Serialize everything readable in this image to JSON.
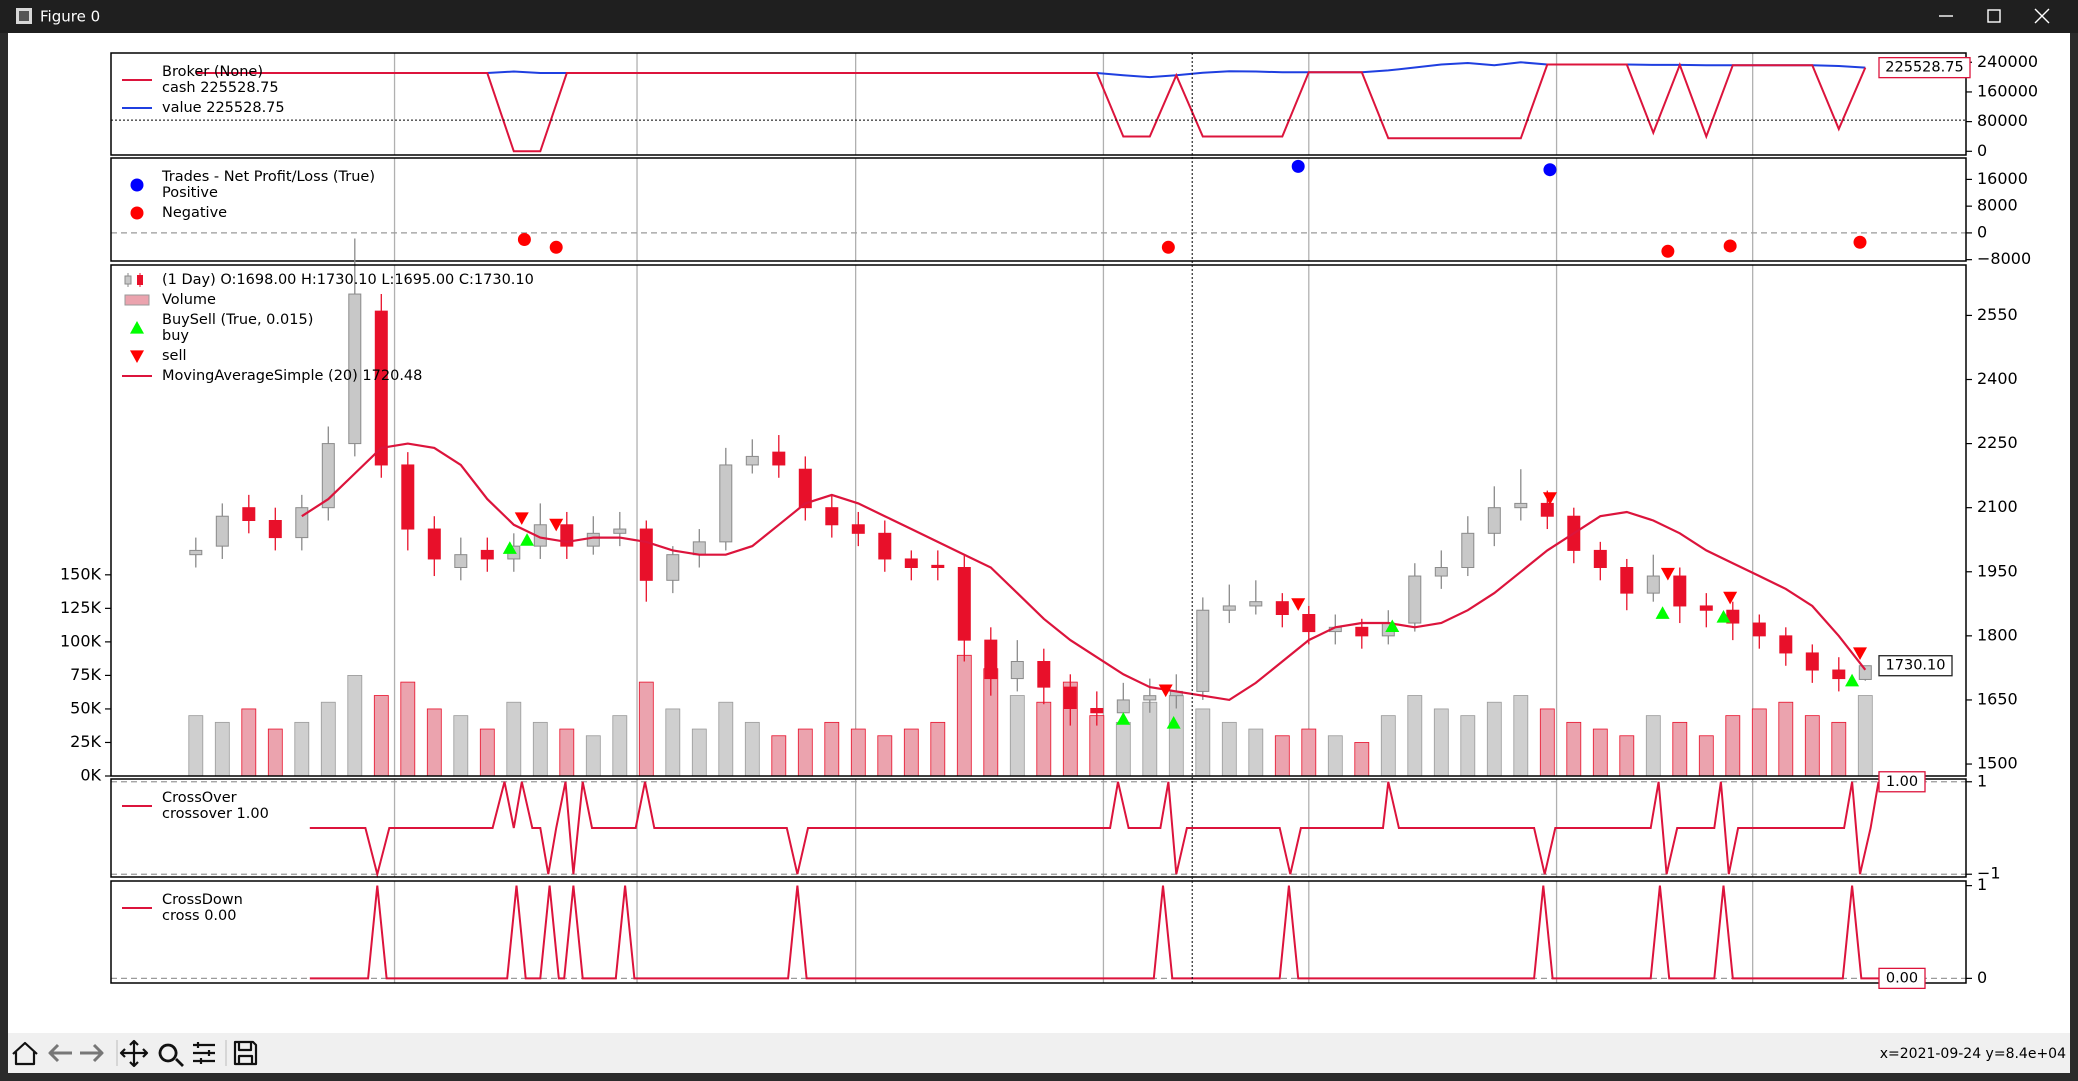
{
  "window": {
    "title": "Figure 0"
  },
  "status": "x=2021-09-24 y=8.4e+04",
  "chart_data": [
    {
      "type": "line",
      "legend_title": "Broker (None)",
      "last_label": "225528.75",
      "xlim": [
        -3.2,
        66.8
      ],
      "xticks": [
        7.5,
        16.65,
        24.9,
        34.25,
        42,
        51.35,
        58.75
      ],
      "grid": true,
      "ylim": [
        -10000,
        265000
      ],
      "yticks": [
        0,
        80000,
        160000,
        240000
      ],
      "crosshair": {
        "x": 37.6,
        "y": 84000
      },
      "series": [
        {
          "name": "cash 225528.75",
          "color": "#dc143c",
          "values": [
            211000,
            211000,
            211000,
            211000,
            211000,
            211000,
            211000,
            211000,
            211000,
            211000,
            211000,
            211000,
            0,
            0,
            211000,
            211000,
            211000,
            211000,
            211000,
            211000,
            211000,
            211000,
            211000,
            211000,
            211000,
            211000,
            211000,
            211000,
            211000,
            211000,
            211000,
            211000,
            211000,
            211000,
            211000,
            40000,
            40000,
            205000,
            40000,
            40000,
            40000,
            40000,
            213000,
            213000,
            213000,
            35000,
            35000,
            35000,
            35000,
            35000,
            35000,
            234000,
            234000,
            234000,
            234000,
            50000,
            233000,
            40000,
            232000,
            232000,
            232000,
            232000,
            60000,
            225528.75
          ]
        },
        {
          "name": "value 225528.75",
          "color": "#1f3fe0",
          "values": [
            211000,
            211000,
            211000,
            211000,
            211000,
            211000,
            211000,
            211000,
            211000,
            211000,
            211000,
            211000,
            215000,
            211000,
            211000,
            211000,
            211000,
            211000,
            211000,
            211000,
            211000,
            211000,
            211000,
            211000,
            211000,
            211000,
            211000,
            211000,
            211000,
            211000,
            211000,
            211000,
            211000,
            211000,
            211000,
            205000,
            200000,
            205000,
            212000,
            216000,
            215000,
            213000,
            213000,
            213000,
            213000,
            218000,
            226000,
            234000,
            238000,
            232000,
            240000,
            234000,
            234000,
            234000,
            234000,
            233000,
            233000,
            232000,
            232000,
            232000,
            232000,
            232000,
            230000,
            225528.75
          ]
        }
      ]
    },
    {
      "type": "scatter",
      "legend_title": "Trades - Net Profit/Loss (True)",
      "xlim": [
        -3.2,
        66.8
      ],
      "xticks": [
        7.5,
        16.65,
        24.9,
        34.25,
        42,
        51.35,
        58.75
      ],
      "grid": true,
      "ylim": [
        -8400,
        22400
      ],
      "yticks": [
        {
          "value": -8000,
          "label": "−8000"
        },
        0,
        8000,
        16000
      ],
      "hlines": [
        0
      ],
      "series": [
        {
          "name": "Positive",
          "color": "#0000ff",
          "x": [
            41.6,
            51.1
          ],
          "values": [
            19900,
            18900
          ]
        },
        {
          "name": "Negative",
          "color": "#ff0000",
          "x": [
            12.4,
            13.6,
            36.7,
            55.55,
            57.9,
            62.8
          ],
          "values": [
            -1970,
            -4300,
            -4300,
            -5500,
            -3900,
            -2800
          ]
        }
      ]
    },
    {
      "type": "candlestick",
      "last_label": "1730.10",
      "xlim": [
        -3.2,
        66.8
      ],
      "xticks": [
        7.5,
        16.65,
        24.9,
        34.25,
        42,
        51.35,
        58.75
      ],
      "grid": true,
      "ylim": [
        1472,
        2668
      ],
      "yticks": [
        1500,
        1650,
        1800,
        1950,
        2100,
        2250,
        2400,
        2550
      ],
      "y2lim": [
        0,
        381000
      ],
      "y2ticks": [
        {
          "value": 0,
          "label": "0K"
        },
        {
          "value": 25000,
          "label": "25K"
        },
        {
          "value": 50000,
          "label": "50K"
        },
        {
          "value": 75000,
          "label": "75K"
        },
        {
          "value": 100000,
          "label": "100K"
        },
        {
          "value": 125000,
          "label": "125K"
        },
        {
          "value": 150000,
          "label": "150K"
        }
      ],
      "ohlc": {
        "name": "(1 Day) O:1698.00 H:1730.10 L:1695.00 C:1730.10",
        "color_up": "#c8c8c8",
        "color_down": "#e8102a",
        "open": [
          1990,
          2010,
          2100,
          2070,
          2030,
          2100,
          2250,
          2560,
          2200,
          2050,
          1960,
          2000,
          1980,
          2010,
          2060,
          2010,
          2040,
          2050,
          1930,
          1990,
          2020,
          2200,
          2230,
          2190,
          2100,
          2060,
          2040,
          1980,
          1965,
          1960,
          1790,
          1700,
          1740,
          1680,
          1630,
          1620,
          1650,
          1660,
          1670,
          1860,
          1870,
          1880,
          1850,
          1810,
          1820,
          1800,
          1830,
          1940,
          1960,
          2040,
          2100,
          2110,
          2080,
          2000,
          1960,
          1900,
          1940,
          1870,
          1860,
          1830,
          1800,
          1760,
          1720,
          1698
        ],
        "high": [
          2030,
          2110,
          2130,
          2100,
          2130,
          2290,
          2730,
          2600,
          2230,
          2080,
          2030,
          2030,
          2040,
          2110,
          2090,
          2080,
          2090,
          2070,
          2010,
          2050,
          2240,
          2260,
          2270,
          2220,
          2130,
          2090,
          2070,
          2000,
          2000,
          1990,
          1820,
          1790,
          1770,
          1710,
          1670,
          1690,
          1700,
          1710,
          1890,
          1920,
          1930,
          1900,
          1870,
          1850,
          1840,
          1860,
          1970,
          2000,
          2080,
          2150,
          2190,
          2140,
          2100,
          2020,
          1980,
          1990,
          1960,
          1900,
          1880,
          1850,
          1820,
          1780,
          1750,
          1730.1
        ],
        "low": [
          1960,
          1980,
          2040,
          2000,
          2000,
          2070,
          2220,
          2170,
          2000,
          1940,
          1930,
          1950,
          1950,
          1980,
          1980,
          1990,
          2010,
          1880,
          1900,
          1960,
          2000,
          2180,
          2170,
          2070,
          2030,
          2010,
          1950,
          1930,
          1930,
          1740,
          1660,
          1670,
          1640,
          1590,
          1590,
          1600,
          1620,
          1630,
          1650,
          1830,
          1850,
          1820,
          1780,
          1780,
          1770,
          1780,
          1810,
          1910,
          1940,
          2010,
          2070,
          2050,
          1970,
          1930,
          1860,
          1880,
          1830,
          1820,
          1790,
          1770,
          1730,
          1690,
          1670,
          1695
        ],
        "close": [
          2000,
          2080,
          2070,
          2030,
          2100,
          2250,
          2600,
          2200,
          2050,
          1980,
          1990,
          1980,
          2010,
          2060,
          2010,
          2040,
          2050,
          1930,
          1990,
          2020,
          2200,
          2220,
          2200,
          2100,
          2060,
          2040,
          1980,
          1960,
          1960,
          1790,
          1700,
          1740,
          1680,
          1630,
          1620,
          1650,
          1660,
          1670,
          1860,
          1870,
          1880,
          1850,
          1810,
          1820,
          1800,
          1830,
          1940,
          1960,
          2040,
          2100,
          2110,
          2080,
          2000,
          1960,
          1900,
          1940,
          1870,
          1860,
          1830,
          1800,
          1760,
          1720,
          1700,
          1730.1
        ]
      },
      "volume": {
        "name": "Volume",
        "axis": "y2",
        "color_up": "#cfcfcf",
        "color_down": "#eba3ae",
        "values": [
          45000,
          40000,
          50000,
          35000,
          40000,
          55000,
          75000,
          60000,
          70000,
          50000,
          45000,
          35000,
          55000,
          40000,
          35000,
          30000,
          45000,
          70000,
          50000,
          35000,
          55000,
          40000,
          30000,
          35000,
          40000,
          35000,
          30000,
          35000,
          40000,
          90000,
          80000,
          60000,
          55000,
          70000,
          45000,
          40000,
          55000,
          60000,
          50000,
          40000,
          35000,
          30000,
          35000,
          30000,
          25000,
          45000,
          60000,
          50000,
          45000,
          55000,
          60000,
          50000,
          40000,
          35000,
          30000,
          45000,
          40000,
          30000,
          45000,
          50000,
          55000,
          45000,
          40000,
          60000
        ]
      },
      "sma": {
        "name": "MovingAverageSimple (20) 1720.48",
        "color": "#dc143c",
        "values": [
          null,
          null,
          null,
          null,
          2080,
          2120,
          2180,
          2240,
          2250,
          2240,
          2200,
          2120,
          2060,
          2030,
          2020,
          2030,
          2030,
          2020,
          2000,
          1990,
          1990,
          2010,
          2060,
          2110,
          2130,
          2110,
          2080,
          2050,
          2020,
          1990,
          1960,
          1900,
          1840,
          1790,
          1750,
          1710,
          1680,
          1670,
          1660,
          1650,
          1690,
          1740,
          1790,
          1820,
          1830,
          1830,
          1820,
          1830,
          1860,
          1900,
          1950,
          2000,
          2040,
          2080,
          2090,
          2070,
          2040,
          2000,
          1970,
          1940,
          1910,
          1870,
          1800,
          1720.48
        ]
      },
      "buysell": {
        "title": "BuySell (True, 0.015)",
        "buy": {
          "name": "buy",
          "color": "#00ff00",
          "x": [
            11.85,
            12.5,
            35,
            36.9,
            45.15,
            55.35,
            57.65,
            62.5
          ],
          "values": [
            2005,
            2024,
            1605,
            1596,
            1822,
            1853,
            1844,
            1695
          ]
        },
        "sell": {
          "name": "sell",
          "color": "#ff0000",
          "x": [
            12.3,
            13.6,
            36.6,
            41.6,
            51.1,
            55.55,
            57.9,
            62.8
          ],
          "values": [
            2076,
            2061,
            1673,
            1875,
            2123,
            1946,
            1890,
            1760
          ]
        }
      }
    },
    {
      "type": "line",
      "legend_title": "CrossOver",
      "last_label": "1.00",
      "xlim": [
        -3.2,
        66.8
      ],
      "xticks": [
        7.5,
        16.65,
        24.9,
        34.25,
        42,
        51.35,
        58.75
      ],
      "grid": true,
      "ylim": [
        -1.06,
        1.06
      ],
      "yticks": [
        {
          "value": -1,
          "label": "−1"
        },
        1
      ],
      "hlines": [
        -1,
        1
      ],
      "series": [
        {
          "name": "crossover 1.00",
          "color": "#dc143c",
          "x": [
            4.3,
            6.4,
            6.85,
            7.3,
            11.2,
            11.65,
            12.0,
            12.3,
            12.7,
            13.0,
            13.3,
            13.6,
            13.95,
            14.25,
            14.6,
            14.95,
            16.6,
            16.95,
            17.3,
            22.3,
            22.7,
            23.1,
            34.5,
            34.8,
            35.2,
            36.4,
            36.7,
            37.0,
            37.4,
            40.9,
            41.3,
            41.7,
            44.8,
            45.0,
            45.4,
            50.5,
            50.9,
            51.3,
            54.9,
            55.2,
            55.5,
            55.9,
            57.3,
            57.55,
            57.85,
            58.2,
            62.2,
            62.5,
            62.8,
            63.2,
            63.5
          ],
          "values": [
            0,
            0,
            -1,
            0,
            0,
            1,
            0,
            1,
            0,
            0,
            -1,
            0,
            1,
            -1,
            1,
            0,
            0,
            1,
            0,
            0,
            -1,
            0,
            0,
            1,
            0,
            0,
            1,
            -1,
            0,
            0,
            -1,
            0,
            0,
            1,
            0,
            0,
            -1,
            0,
            0,
            1,
            -1,
            0,
            0,
            1,
            -1,
            0,
            0,
            1,
            -1,
            0,
            1
          ]
        }
      ]
    },
    {
      "type": "line",
      "legend_title": "CrossDown",
      "last_label": "0.00",
      "xlim": [
        -3.2,
        66.8
      ],
      "xticks": [
        7.5,
        16.65,
        24.9,
        34.25,
        42,
        51.35,
        58.75
      ],
      "grid": true,
      "ylim": [
        -0.05,
        1.05
      ],
      "yticks": [
        0,
        1
      ],
      "hlines": [
        0
      ],
      "series": [
        {
          "name": "cross 0.00",
          "color": "#dc143c",
          "x": [
            4.3,
            6.5,
            6.85,
            7.2,
            11.75,
            12.1,
            12.45,
            13.0,
            13.35,
            13.7,
            13.9,
            14.25,
            14.6,
            15.85,
            16.2,
            16.55,
            22.35,
            22.7,
            23.05,
            36.15,
            36.5,
            36.85,
            40.9,
            41.25,
            41.6,
            50.5,
            50.85,
            51.2,
            54.9,
            55.25,
            55.6,
            57.3,
            57.65,
            58.0,
            62.15,
            62.5,
            62.85,
            63.5
          ],
          "values": [
            0,
            0,
            1,
            0,
            0,
            1,
            0,
            0,
            1,
            0,
            0,
            1,
            0,
            0,
            1,
            0,
            0,
            1,
            0,
            0,
            1,
            0,
            0,
            1,
            0,
            0,
            1,
            0,
            0,
            1,
            0,
            0,
            1,
            0,
            0,
            1,
            0,
            0
          ]
        }
      ]
    }
  ]
}
